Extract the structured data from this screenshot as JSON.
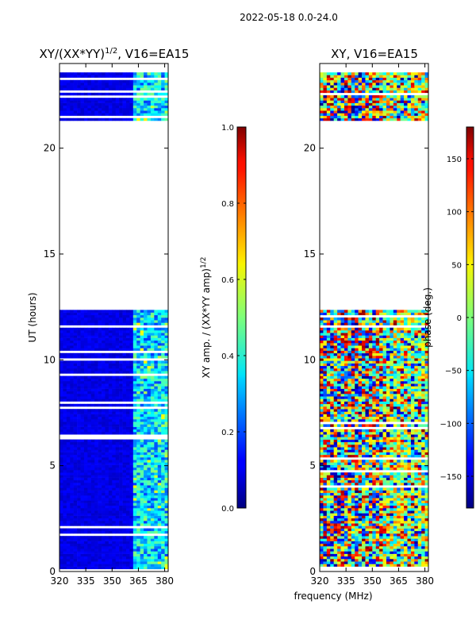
{
  "figure_title": "2022-05-18 0.0-24.0",
  "chart_data": [
    {
      "type": "heatmap",
      "title": "XY/(XX*YY)",
      "title_sup": "1/2",
      "title_suffix": ", V16=EA15",
      "xlabel": "",
      "ylabel": "UT (hours)",
      "xlim": [
        320,
        382
      ],
      "ylim": [
        0,
        24
      ],
      "xticks": [
        320,
        335,
        350,
        365,
        380
      ],
      "yticks": [
        0,
        5,
        10,
        15,
        20
      ],
      "data_ut_ranges": [
        [
          0.0,
          12.3
        ],
        [
          21.3,
          23.5
        ]
      ],
      "active_band_mhz": [
        361,
        380
      ],
      "colorbar": {
        "label": "XY amp. / (XX*YY amp)",
        "label_sup": "1/2",
        "range": [
          0.0,
          1.0
        ],
        "ticks": [
          0.0,
          0.2,
          0.4,
          0.6,
          0.8,
          1.0
        ],
        "tick_labels": [
          "0.0",
          "0.2",
          "0.4",
          "0.6",
          "0.8",
          "1.0"
        ]
      }
    },
    {
      "type": "heatmap",
      "title": "XY, V16=EA15",
      "xlabel": "frequency (MHz)",
      "ylabel": "",
      "xlim": [
        320,
        382
      ],
      "ylim": [
        0,
        24
      ],
      "xticks": [
        320,
        335,
        350,
        365,
        380
      ],
      "yticks": [
        0,
        5,
        10,
        15,
        20
      ],
      "data_ut_ranges": [
        [
          0.0,
          12.3
        ],
        [
          21.3,
          23.5
        ]
      ],
      "colorbar": {
        "label": "phase (deg.)",
        "range": [
          -180,
          180
        ],
        "ticks": [
          -150,
          -100,
          -50,
          0,
          50,
          100,
          150
        ],
        "tick_labels": [
          "−150",
          "−100",
          "−50",
          "0",
          "50",
          "100",
          "150"
        ]
      }
    }
  ]
}
